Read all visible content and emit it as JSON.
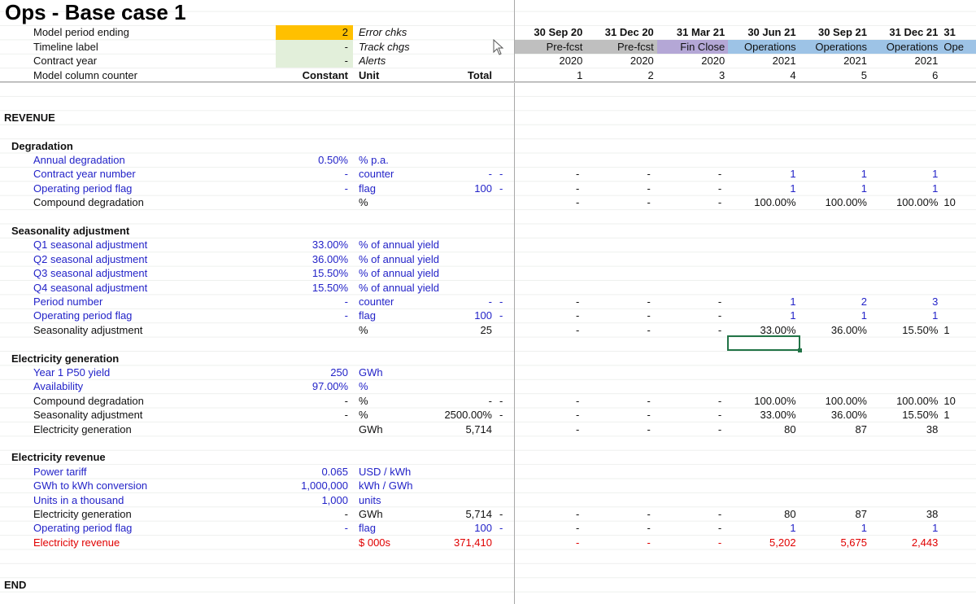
{
  "title": "Ops - Base case 1",
  "colors": {
    "input_blue": "#2323c8",
    "revenue_red": "#e00000",
    "period_highlight": "#ffc000",
    "input_green": "#e2efda",
    "prefcst_gray": "#bfbfbf",
    "finclose_purple": "#b4a7d6",
    "operations_blue": "#9dc3e6",
    "selection_green": "#217346"
  },
  "header_fills": [
    "gray",
    "gray",
    "purple",
    "blue",
    "blue",
    "blue",
    "blue"
  ],
  "rows": [
    {
      "label": "Model period ending",
      "indent": 2,
      "style": "black",
      "constant": "2",
      "constant_fill": "yellow",
      "unit": "Error chks",
      "unit_italic": true,
      "total": "",
      "flag": "",
      "values": [
        "30 Sep 20",
        "31 Dec 20",
        "31 Mar 21",
        "30 Jun 21",
        "30 Sep 21",
        "31 Dec 21",
        "31"
      ],
      "values_bold": true
    },
    {
      "label": "Timeline label",
      "indent": 2,
      "style": "black",
      "constant": "-",
      "constant_fill": "green",
      "unit": "Track chgs",
      "unit_italic": true,
      "total": "",
      "flag": "",
      "values": [
        "Pre-fcst",
        "Pre-fcst",
        "Fin Close",
        "Operations",
        "Operations",
        "Operations",
        "Ope"
      ],
      "header_fill_row": true
    },
    {
      "label": "Contract year",
      "indent": 2,
      "style": "black",
      "constant": "-",
      "constant_fill": "green",
      "unit": "Alerts",
      "unit_italic": true,
      "total": "",
      "flag": "",
      "values": [
        "2020",
        "2020",
        "2020",
        "2021",
        "2021",
        "2021",
        ""
      ]
    },
    {
      "label": "Model column counter",
      "indent": 2,
      "style": "black",
      "constant": "Constant",
      "unit": "Unit",
      "total": "Total",
      "flag": "",
      "header_bold": true,
      "values": [
        "1",
        "2",
        "3",
        "4",
        "5",
        "6",
        ""
      ]
    },
    {
      "label": "",
      "values": []
    },
    {
      "label": "",
      "values": []
    },
    {
      "label": "REVENUE",
      "indent": 0,
      "values": []
    },
    {
      "label": "",
      "values": []
    },
    {
      "label": "Degradation",
      "indent": 1,
      "values": []
    },
    {
      "label": "Annual degradation",
      "indent": 2,
      "style": "blue",
      "constant": "0.50%",
      "unit": "% p.a.",
      "total": "",
      "flag": "",
      "values": []
    },
    {
      "label": "Contract year number",
      "indent": 2,
      "style": "blue",
      "constant": "-",
      "unit": "counter",
      "total": "-",
      "flag": "-",
      "values": [
        "-",
        "-",
        "-",
        "1",
        "1",
        "1",
        ""
      ]
    },
    {
      "label": "Operating period flag",
      "indent": 2,
      "style": "blue",
      "constant": "-",
      "unit": "flag",
      "total": "100",
      "flag": "-",
      "values": [
        "-",
        "-",
        "-",
        "1",
        "1",
        "1",
        ""
      ]
    },
    {
      "label": "Compound degradation",
      "indent": 2,
      "style": "black",
      "constant": "",
      "unit": "%",
      "total": "",
      "flag": "",
      "values": [
        "-",
        "-",
        "-",
        "100.00%",
        "100.00%",
        "100.00%",
        "10"
      ]
    },
    {
      "label": "",
      "values": []
    },
    {
      "label": "Seasonality adjustment",
      "indent": 1,
      "values": []
    },
    {
      "label": "Q1 seasonal adjustment",
      "indent": 2,
      "style": "blue",
      "constant": "33.00%",
      "unit": "% of annual yield",
      "total": "",
      "flag": "",
      "values": []
    },
    {
      "label": "Q2 seasonal adjustment",
      "indent": 2,
      "style": "blue",
      "constant": "36.00%",
      "unit": "% of annual yield",
      "total": "",
      "flag": "",
      "values": []
    },
    {
      "label": "Q3 seasonal adjustment",
      "indent": 2,
      "style": "blue",
      "constant": "15.50%",
      "unit": "% of annual yield",
      "total": "",
      "flag": "",
      "values": []
    },
    {
      "label": "Q4 seasonal adjustment",
      "indent": 2,
      "style": "blue",
      "constant": "15.50%",
      "unit": "% of annual yield",
      "total": "",
      "flag": "",
      "values": []
    },
    {
      "label": "Period number",
      "indent": 2,
      "style": "blue",
      "constant": "-",
      "unit": "counter",
      "total": "-",
      "flag": "-",
      "values": [
        "-",
        "-",
        "-",
        "1",
        "2",
        "3",
        ""
      ]
    },
    {
      "label": "Operating period flag",
      "indent": 2,
      "style": "blue",
      "constant": "-",
      "unit": "flag",
      "total": "100",
      "flag": "-",
      "values": [
        "-",
        "-",
        "-",
        "1",
        "1",
        "1",
        ""
      ]
    },
    {
      "label": "Seasonality adjustment",
      "indent": 2,
      "style": "black",
      "constant": "",
      "unit": "%",
      "total": "25",
      "flag": "",
      "values": [
        "-",
        "-",
        "-",
        "33.00%",
        "36.00%",
        "15.50%",
        "1"
      ]
    },
    {
      "label": "",
      "values": []
    },
    {
      "label": "Electricity generation",
      "indent": 1,
      "values": []
    },
    {
      "label": "Year 1 P50 yield",
      "indent": 2,
      "style": "blue",
      "constant": "250",
      "unit": "GWh",
      "total": "",
      "flag": "",
      "values": []
    },
    {
      "label": "Availability",
      "indent": 2,
      "style": "blue",
      "constant": "97.00%",
      "unit": "%",
      "total": "",
      "flag": "",
      "values": []
    },
    {
      "label": "Compound degradation",
      "indent": 2,
      "style": "black",
      "constant": "-",
      "unit": "%",
      "total": "-",
      "flag": "-",
      "values": [
        "-",
        "-",
        "-",
        "100.00%",
        "100.00%",
        "100.00%",
        "10"
      ]
    },
    {
      "label": "Seasonality adjustment",
      "indent": 2,
      "style": "black",
      "constant": "-",
      "unit": "%",
      "total": "2500.00%",
      "flag": "-",
      "values": [
        "-",
        "-",
        "-",
        "33.00%",
        "36.00%",
        "15.50%",
        "1"
      ]
    },
    {
      "label": "Electricity generation",
      "indent": 2,
      "style": "black",
      "constant": "",
      "unit": "GWh",
      "total": "5,714",
      "flag": "",
      "values": [
        "-",
        "-",
        "-",
        "80",
        "87",
        "38",
        ""
      ]
    },
    {
      "label": "",
      "values": []
    },
    {
      "label": "Electricity revenue",
      "indent": 1,
      "values": []
    },
    {
      "label": "Power tariff",
      "indent": 2,
      "style": "blue",
      "constant": "0.065",
      "unit": "USD / kWh",
      "total": "",
      "flag": "",
      "values": []
    },
    {
      "label": "GWh to kWh conversion",
      "indent": 2,
      "style": "blue",
      "constant": "1,000,000",
      "unit": "kWh / GWh",
      "total": "",
      "flag": "",
      "values": []
    },
    {
      "label": "Units in a thousand",
      "indent": 2,
      "style": "blue",
      "constant": "1,000",
      "unit": "units",
      "total": "",
      "flag": "",
      "values": []
    },
    {
      "label": "Electricity generation",
      "indent": 2,
      "style": "black",
      "constant": "-",
      "unit": "GWh",
      "total": "5,714",
      "flag": "-",
      "values": [
        "-",
        "-",
        "-",
        "80",
        "87",
        "38",
        ""
      ]
    },
    {
      "label": "Operating period flag",
      "indent": 2,
      "style": "blue",
      "constant": "-",
      "unit": "flag",
      "total": "100",
      "flag": "-",
      "values": [
        "-",
        "-",
        "-",
        "1",
        "1",
        "1",
        ""
      ]
    },
    {
      "label": "Electricity revenue",
      "indent": 2,
      "style": "red",
      "constant": "",
      "unit": "$ 000s",
      "total": "371,410",
      "flag": "",
      "values": [
        "-",
        "-",
        "-",
        "5,202",
        "5,675",
        "2,443",
        ""
      ]
    },
    {
      "label": "",
      "values": []
    },
    {
      "label": "",
      "values": []
    },
    {
      "label": "END",
      "indent": 0,
      "values": []
    }
  ]
}
